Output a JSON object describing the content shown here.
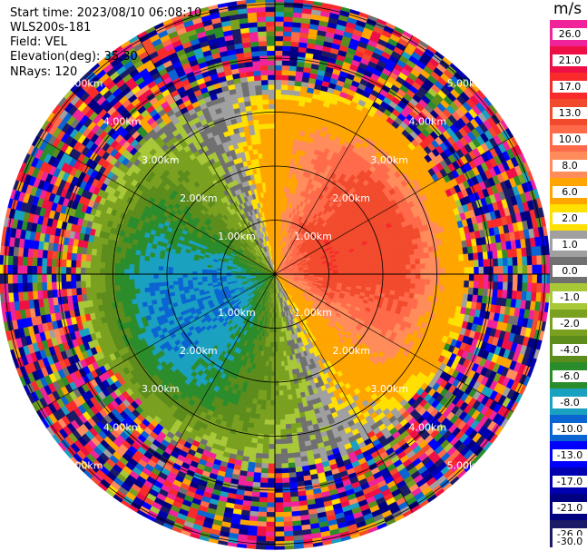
{
  "info": {
    "start_time": "Start time: 2023/08/10 06:08:10",
    "instrument": "WLS200s-181",
    "field": "Field: VEL",
    "elevation": "Elevation(deg): 35.30",
    "nrays": "NRays: 120"
  },
  "colorbar": {
    "unit": "m/s",
    "labels": [
      "26.0",
      "21.0",
      "17.0",
      "13.0",
      "10.0",
      "8.0",
      "6.0",
      "2.0",
      "1.0",
      "0.0",
      "-1.0",
      "-2.0",
      "-4.0",
      "-6.0",
      "-8.0",
      "-10.0",
      "-13.0",
      "-17.0",
      "-21.0",
      "-26.0",
      "-30.0"
    ],
    "colors": [
      "#f0239a",
      "#ee0f45",
      "#f82a2a",
      "#f24a2c",
      "#ff6a4a",
      "#ff8c5a",
      "#ffa500",
      "#ffe000",
      "#a0a0a0",
      "#707070",
      "#a8c838",
      "#7aa020",
      "#5c8c1c",
      "#2a8c2a",
      "#1aa0c0",
      "#0a64d2",
      "#0000ff",
      "#0000b0",
      "#000080",
      "#1a1a66"
    ]
  },
  "chart_data": {
    "type": "ppi",
    "field": "VEL",
    "units": "m/s",
    "elevation_deg": 35.3,
    "n_rays": 120,
    "range_ring_labels": [
      "1.00km",
      "2.00km",
      "3.00km",
      "4.00km",
      "5.00km"
    ],
    "range_rings_km": [
      1.0,
      2.0,
      3.0,
      4.0,
      5.0
    ],
    "max_range_km": 5.1,
    "azimuth_spoke_step_deg": 30,
    "color_scale_boundaries": [
      26.0,
      21.0,
      17.0,
      13.0,
      10.0,
      8.0,
      6.0,
      2.0,
      1.0,
      0.0,
      -1.0,
      -2.0,
      -4.0,
      -6.0,
      -8.0,
      -10.0,
      -13.0,
      -17.0,
      -21.0,
      -26.0,
      -30.0
    ],
    "velocity_pattern": {
      "positive_toward_deg": 70,
      "peak_positive_m_s": 12,
      "peak_negative_m_s": -10,
      "noise_beyond_km": [
        3.4,
        3.7
      ]
    }
  }
}
